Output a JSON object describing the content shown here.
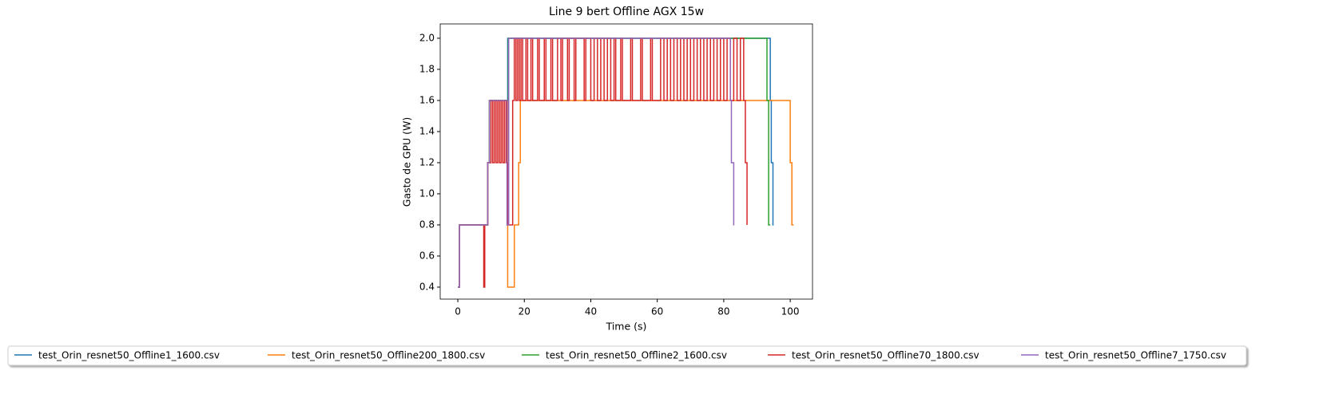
{
  "chart_data": {
    "type": "line",
    "drawstyle": "steps-post",
    "title": "Line 9 bert Offline AGX 15w",
    "xlabel": "Time (s)",
    "ylabel": "Gasto de GPU (W)",
    "xlim": [
      -5.3,
      106.7
    ],
    "ylim": [
      0.323,
      2.092
    ],
    "xticks": [
      0,
      20,
      40,
      60,
      80,
      100
    ],
    "yticks": [
      0.4,
      0.6,
      0.8,
      {
        "value": 1.0,
        "label": "1.0"
      },
      1.2,
      1.4,
      1.6,
      1.8,
      {
        "value": 2.0,
        "label": "2.0"
      }
    ],
    "legend": "lower center",
    "series": [
      {
        "name": "test_Orin_resnet50_Offline1_1600.csv",
        "color": "#1f77b4",
        "x": [
          0,
          0.5,
          9,
          9.5,
          15,
          94,
          94.3,
          94.8,
          95
        ],
        "values": [
          0.4,
          0.8,
          1.2,
          1.6,
          2.0,
          1.6,
          1.2,
          0.8,
          0.8
        ]
      },
      {
        "name": "test_Orin_resnet50_Offline200_1800.csv",
        "color": "#ff7f0e",
        "x": [
          0,
          0.5,
          9,
          9.5,
          15,
          17,
          18.3,
          18.8,
          100,
          100.5,
          101
        ],
        "values": [
          0.4,
          0.8,
          1.2,
          1.6,
          0.4,
          0.8,
          1.2,
          1.6,
          1.2,
          0.8,
          0.8
        ]
      },
      {
        "name": "test_Orin_resnet50_Offline2_1600.csv",
        "color": "#2ca02c",
        "x": [
          0,
          0.5,
          9,
          9.5,
          15.2,
          93,
          93.5,
          94
        ],
        "values": [
          0.4,
          0.8,
          1.2,
          1.6,
          2.0,
          1.6,
          0.8,
          0.8
        ]
      },
      {
        "name": "test_Orin_resnet50_Offline70_1800.csv",
        "color": "#d62728",
        "x": [
          0,
          0.5,
          7.8,
          8.1,
          9,
          10,
          10.5,
          11,
          11.5,
          12,
          12.5,
          13,
          13.5,
          14,
          14.5,
          15,
          16.5,
          17,
          17.5,
          18,
          18.5,
          19,
          19.5,
          20.5,
          21,
          22,
          22.5,
          24,
          24.5,
          26,
          26.5,
          28,
          28.5,
          30,
          31,
          31.5,
          33,
          33.5,
          35,
          35.5,
          38,
          38.5,
          40,
          41,
          42,
          43,
          44,
          45,
          46,
          47,
          47.5,
          49,
          49.5,
          52,
          52.5,
          55,
          55.5,
          58,
          58.5,
          61,
          62,
          63,
          64,
          65,
          66,
          67,
          68,
          69,
          70,
          71,
          72,
          73,
          74,
          75,
          76,
          77,
          78,
          79,
          80,
          81,
          82,
          83,
          84,
          85,
          86,
          86.5,
          87
        ],
        "values": [
          0.4,
          0.8,
          0.4,
          0.8,
          1.2,
          1.6,
          1.2,
          1.6,
          1.2,
          1.6,
          1.2,
          1.6,
          1.2,
          1.6,
          1.2,
          0.8,
          1.6,
          2.0,
          1.6,
          2.0,
          1.6,
          2.0,
          1.6,
          2.0,
          1.6,
          2.0,
          1.6,
          2.0,
          1.6,
          2.0,
          1.6,
          2.0,
          1.6,
          2.0,
          1.6,
          2.0,
          1.6,
          2.0,
          1.6,
          2.0,
          1.6,
          2.0,
          1.6,
          2.0,
          1.6,
          2.0,
          1.6,
          2.0,
          1.6,
          2.0,
          1.6,
          2.0,
          1.6,
          2.0,
          1.6,
          2.0,
          1.6,
          2.0,
          1.6,
          2.0,
          1.6,
          2.0,
          1.6,
          2.0,
          1.6,
          2.0,
          1.6,
          2.0,
          1.6,
          2.0,
          1.6,
          2.0,
          1.6,
          2.0,
          1.6,
          2.0,
          1.6,
          2.0,
          1.6,
          2.0,
          1.6,
          2.0,
          1.6,
          2.0,
          1.6,
          1.2,
          0.8
        ]
      },
      {
        "name": "test_Orin_resnet50_Offline7_1750.csv",
        "color": "#9467bd",
        "x": [
          0,
          0.5,
          9,
          9.5,
          14.8,
          15.3,
          82,
          82.3,
          83,
          83.1
        ],
        "values": [
          0.4,
          0.8,
          1.2,
          1.6,
          0.8,
          2.0,
          1.6,
          1.2,
          0.8,
          0.8
        ]
      }
    ]
  }
}
